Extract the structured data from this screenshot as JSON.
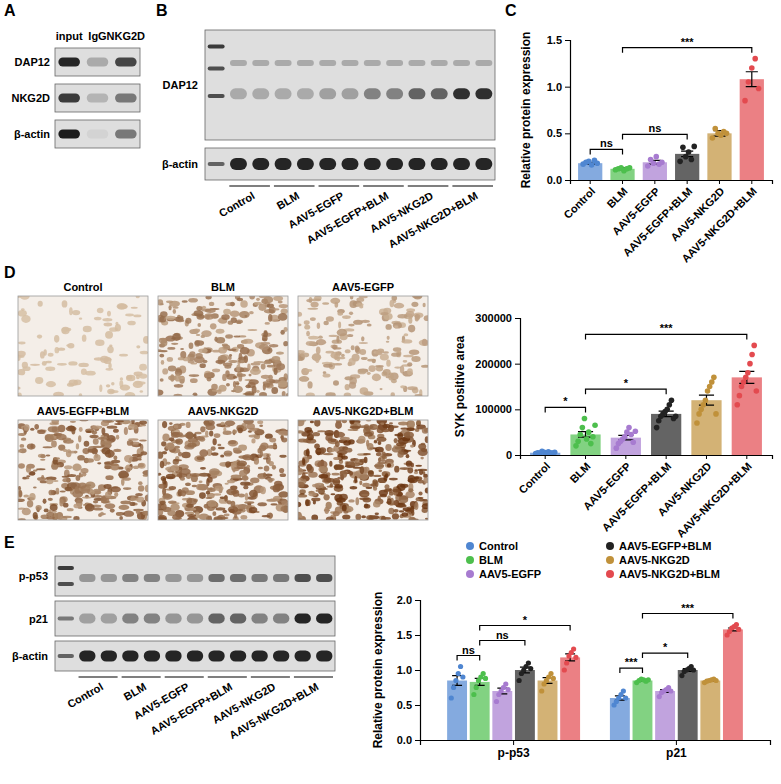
{
  "panel_letters": [
    "A",
    "B",
    "C",
    "D",
    "E"
  ],
  "blot_a": {
    "lanes": [
      "input",
      "IgG",
      "NKG2D"
    ],
    "rows": [
      "DAP12",
      "NKG2D",
      "β-actin"
    ]
  },
  "blot_b": {
    "rows": [
      "DAP12",
      "β-actin"
    ],
    "groups": [
      "Control",
      "BLM",
      "AAV5-EGFP",
      "AAV5-EGFP+BLM",
      "AAV5-NKG2D",
      "AAV5-NKG2D+BLM"
    ]
  },
  "histology_d": {
    "titles": [
      "Control",
      "BLM",
      "AAV5-EGFP",
      "AAV5-EGFP+BLM",
      "AAV5-NKG2D",
      "AAV5-NKG2D+BLM"
    ]
  },
  "blot_e": {
    "rows": [
      "p-p53",
      "p21",
      "β-actin"
    ],
    "groups": [
      "Control",
      "BLM",
      "AAV5-EGFP",
      "AAV5-EGFP+BLM",
      "AAV5-NKG2D",
      "AAV5-NKG2D+BLM"
    ]
  },
  "chart_data": [
    {
      "type": "bar",
      "ylabel": "Relative protein expression",
      "categories": [
        "Control",
        "BLM",
        "AAV5-EGFP",
        "AAV5-EGFP+BLM",
        "AAV5-NKG2D",
        "AAV5-NKG2D+BLM"
      ],
      "values": [
        0.18,
        0.12,
        0.19,
        0.28,
        0.5,
        1.08
      ],
      "errors": [
        0.01,
        0.01,
        0.02,
        0.03,
        0.03,
        0.08
      ],
      "points": [
        [
          0.17,
          0.19,
          0.2,
          0.16,
          0.21,
          0.18
        ],
        [
          0.11,
          0.12,
          0.13,
          0.1,
          0.12,
          0.13
        ],
        [
          0.15,
          0.22,
          0.18,
          0.25,
          0.17,
          0.19
        ],
        [
          0.2,
          0.35,
          0.25,
          0.3,
          0.22,
          0.36
        ],
        [
          0.45,
          0.55,
          0.5,
          0.48,
          0.52,
          0.5
        ],
        [
          0.85,
          1.05,
          1.2,
          1.3,
          0.98
        ]
      ],
      "colors": [
        "#4f86d1",
        "#4dbf4d",
        "#a77bd0",
        "#222222",
        "#c0913a",
        "#e34a4f"
      ],
      "ylim": [
        0,
        1.5
      ],
      "yticks": [
        {
          "value": 0,
          "label": "0.0"
        },
        {
          "value": 0.5,
          "label": "0.5"
        },
        {
          "value": 1,
          "label": "1.0"
        },
        {
          "value": 1.5,
          "label": "1.5"
        }
      ],
      "annotations": [
        {
          "from": 0,
          "to": 1,
          "text": "ns"
        },
        {
          "from": 1,
          "to": 3,
          "text": "ns"
        },
        {
          "from": 1,
          "to": 5,
          "text": "***"
        }
      ]
    },
    {
      "type": "bar",
      "ylabel": "SYK positive area",
      "categories": [
        "Control",
        "BLM",
        "AAV5-EGFP",
        "AAV5-EGFP+BLM",
        "AAV5-NKG2D",
        "AAV5-NKG2D+BLM"
      ],
      "values": [
        5000,
        45000,
        38000,
        90000,
        120000,
        170000
      ],
      "errors": [
        700,
        6000,
        5000,
        6000,
        11000,
        13000
      ],
      "points": [
        [
          3000,
          5000,
          4000,
          8000,
          6000,
          2000,
          7000,
          5000,
          4000,
          6000
        ],
        [
          20000,
          30000,
          45000,
          60000,
          80000,
          35000,
          50000,
          25000,
          40000,
          65000
        ],
        [
          15000,
          25000,
          30000,
          35000,
          40000,
          50000,
          60000,
          45000,
          28000,
          52000
        ],
        [
          60000,
          75000,
          85000,
          90000,
          95000,
          100000,
          110000,
          120000,
          80000,
          85000
        ],
        [
          70000,
          90000,
          100000,
          110000,
          120000,
          140000,
          150000,
          160000,
          170000,
          90000
        ],
        [
          110000,
          130000,
          150000,
          160000,
          170000,
          180000,
          200000,
          220000,
          240000,
          140000
        ]
      ],
      "colors": [
        "#4f86d1",
        "#4dbf4d",
        "#a77bd0",
        "#222222",
        "#c0913a",
        "#e34a4f"
      ],
      "ylim": [
        0,
        300000
      ],
      "yticks": [
        0,
        100000,
        200000,
        300000
      ],
      "annotations": [
        {
          "from": 0,
          "to": 1,
          "text": "*"
        },
        {
          "from": 1,
          "to": 3,
          "text": "*"
        },
        {
          "from": 1,
          "to": 5,
          "text": "***"
        }
      ]
    },
    {
      "type": "bar",
      "ylabel": "Relative protein expression",
      "categories": [
        "p-p53",
        "p21"
      ],
      "series": [
        {
          "name": "Control",
          "color": "#4f86d1",
          "values": [
            0.85,
            0.6
          ],
          "errors": [
            0.07,
            0.03
          ],
          "points": [
            [
              0.6,
              0.75,
              0.85,
              0.95,
              1.05,
              0.9
            ],
            [
              0.5,
              0.55,
              0.6,
              0.65,
              0.7,
              0.6
            ]
          ]
        },
        {
          "name": "BLM",
          "color": "#4dbf4d",
          "values": [
            0.83,
            0.85
          ],
          "errors": [
            0.05,
            0.01
          ],
          "points": [
            [
              0.65,
              0.75,
              0.85,
              0.9,
              0.95,
              0.88
            ],
            [
              0.82,
              0.85,
              0.87,
              0.86,
              0.84,
              0.86
            ]
          ]
        },
        {
          "name": "AAV5-EGFP",
          "color": "#a77bd0",
          "values": [
            0.7,
            0.7
          ],
          "errors": [
            0.04,
            0.02
          ],
          "points": [
            [
              0.55,
              0.65,
              0.7,
              0.75,
              0.8,
              0.72
            ],
            [
              0.62,
              0.68,
              0.7,
              0.72,
              0.75,
              0.7
            ]
          ]
        },
        {
          "name": "AAV5-EGFP+BLM",
          "color": "#222222",
          "values": [
            1.0,
            1.0
          ],
          "errors": [
            0.04,
            0.02
          ],
          "points": [
            [
              0.85,
              0.95,
              1.0,
              1.05,
              1.1,
              1.02
            ],
            [
              0.92,
              0.98,
              1.0,
              1.02,
              1.05,
              1.0
            ]
          ]
        },
        {
          "name": "AAV5-NKG2D",
          "color": "#c0913a",
          "values": [
            0.85,
            0.85
          ],
          "errors": [
            0.04,
            0.01
          ],
          "points": [
            [
              0.7,
              0.8,
              0.85,
              0.9,
              0.95,
              0.88
            ],
            [
              0.82,
              0.84,
              0.85,
              0.86,
              0.87,
              0.85
            ]
          ]
        },
        {
          "name": "AAV5-NKG2D+BLM",
          "color": "#e34a4f",
          "values": [
            1.18,
            1.58
          ],
          "errors": [
            0.05,
            0.02
          ],
          "points": [
            [
              1.0,
              1.1,
              1.2,
              1.25,
              1.3,
              1.18
            ],
            [
              1.5,
              1.55,
              1.6,
              1.62,
              1.65,
              1.58
            ]
          ]
        }
      ],
      "ylim": [
        0,
        2
      ],
      "yticks": [
        {
          "value": 0,
          "label": "0.0"
        },
        {
          "value": 0.5,
          "label": "0.5"
        },
        {
          "value": 1,
          "label": "1.0"
        },
        {
          "value": 1.5,
          "label": "1.5"
        },
        {
          "value": 2,
          "label": "2.0"
        }
      ],
      "legend": "top",
      "annotations": [
        {
          "category": 0,
          "from": 0,
          "to": 1,
          "text": "ns"
        },
        {
          "category": 0,
          "from": 1,
          "to": 3,
          "text": "ns"
        },
        {
          "category": 0,
          "from": 1,
          "to": 5,
          "text": "*"
        },
        {
          "category": 1,
          "from": 0,
          "to": 1,
          "text": "***"
        },
        {
          "category": 1,
          "from": 1,
          "to": 3,
          "text": "*"
        },
        {
          "category": 1,
          "from": 1,
          "to": 5,
          "text": "***"
        }
      ]
    }
  ]
}
